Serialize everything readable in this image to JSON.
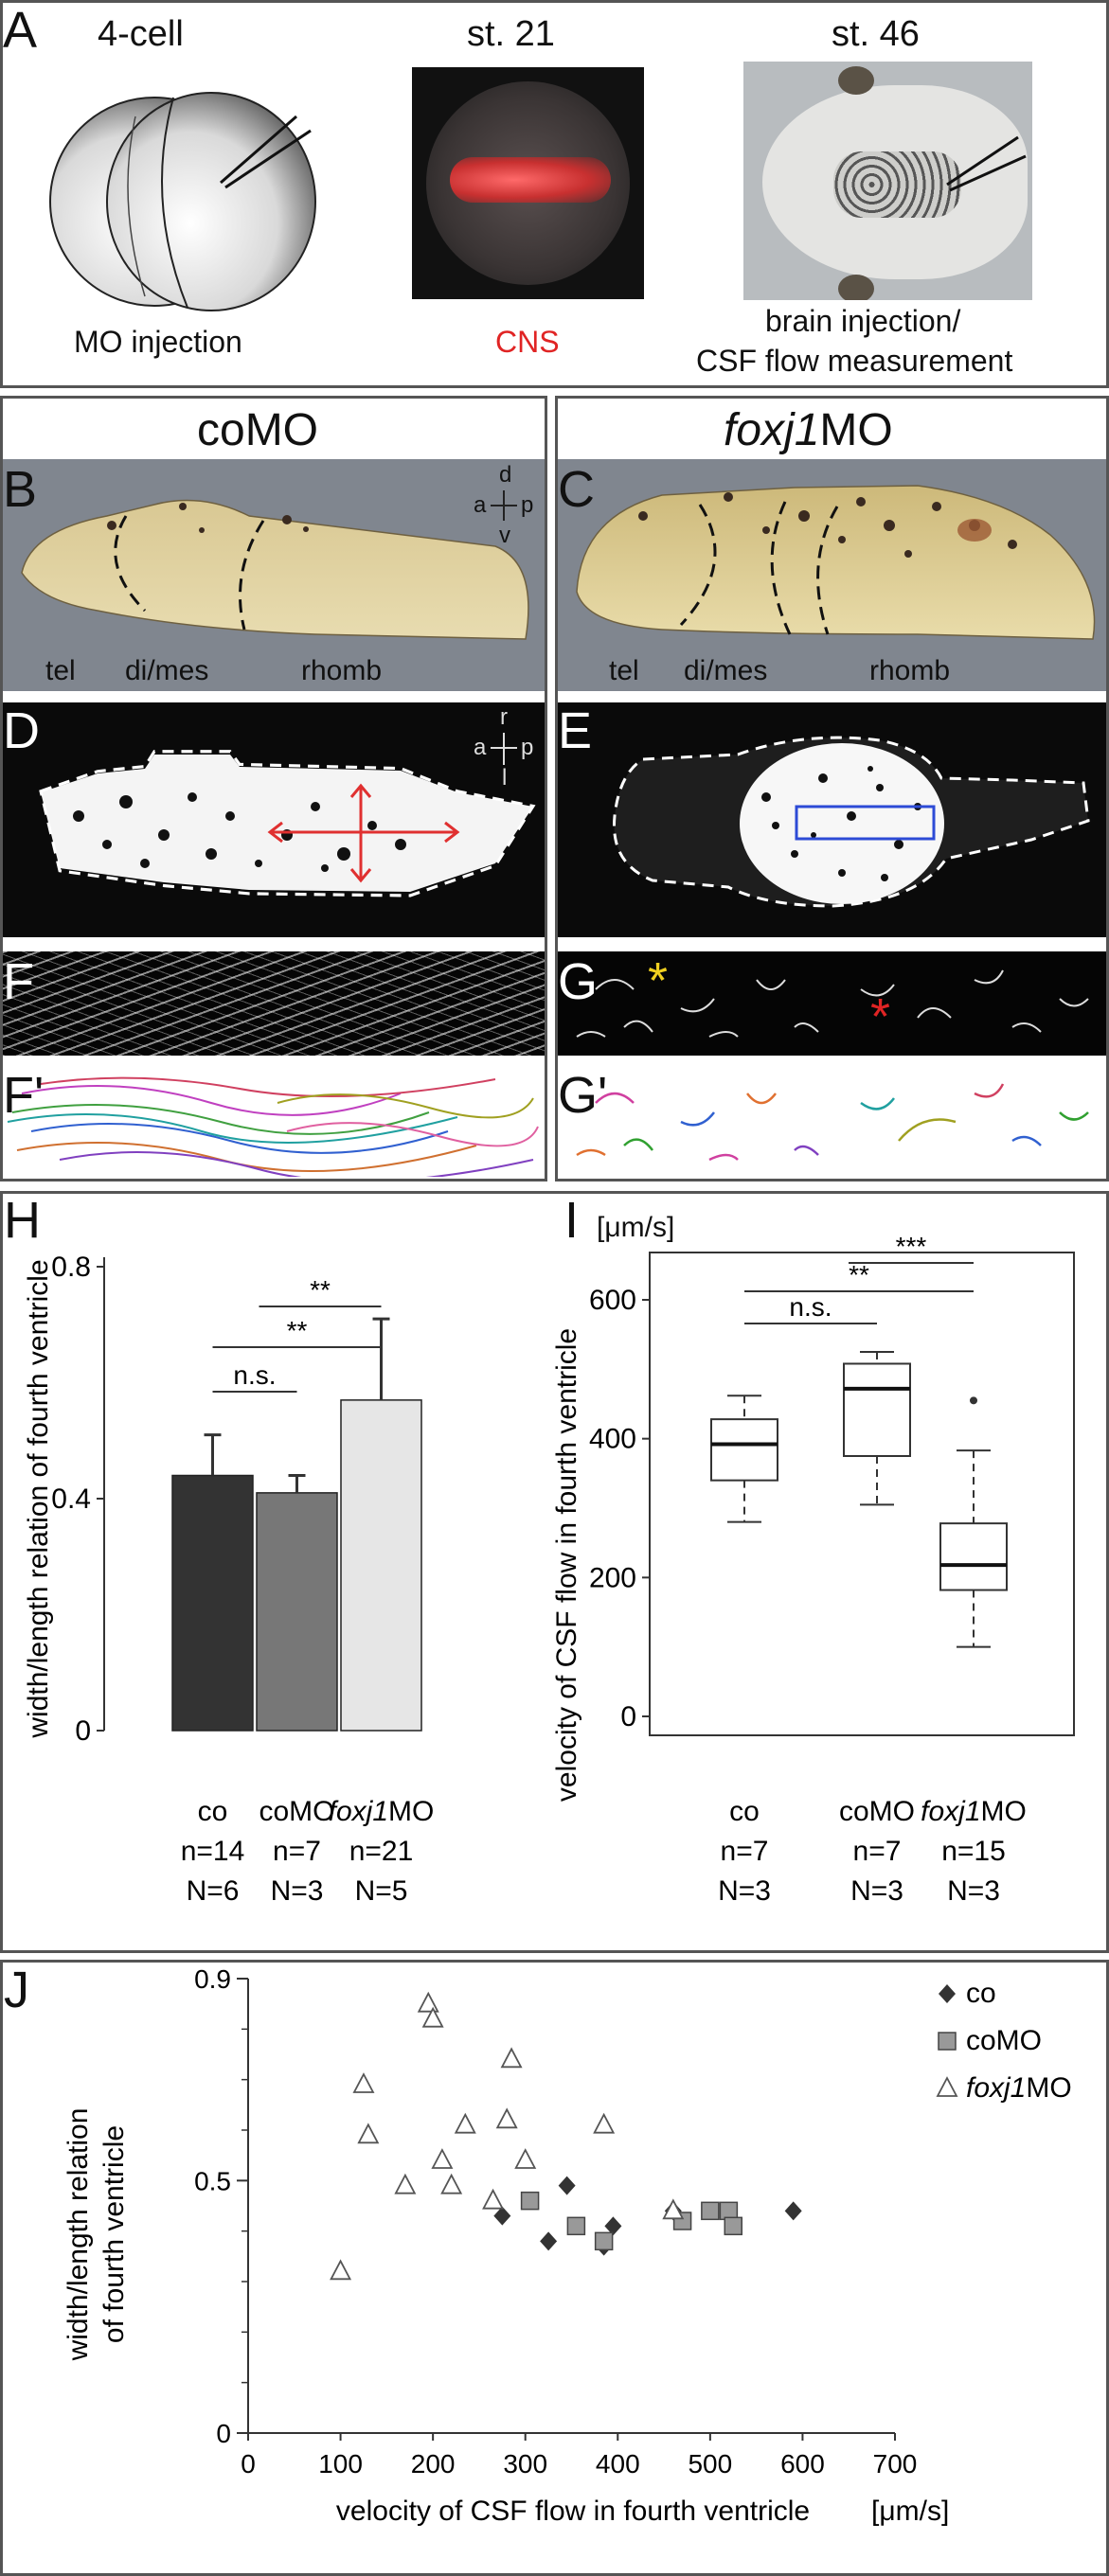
{
  "panelA": {
    "letter": "A",
    "stage1": "4-cell",
    "stage2": "st. 21",
    "stage3": "st. 46",
    "caption1": "MO injection",
    "caption2": "CNS",
    "caption3_line1": "brain injection/",
    "caption3_line2": "CSF flow measurement",
    "colors": {
      "cns": "#e02424"
    }
  },
  "left_header": "coMO",
  "right_header_italic": "foxj1",
  "right_header_rest": "MO",
  "panelB": {
    "letter": "B",
    "tel": "tel",
    "dimes": "di/mes",
    "rhomb": "rhomb",
    "axis_d": "d",
    "axis_a": "a",
    "axis_p": "p",
    "axis_v": "v"
  },
  "panelC": {
    "letter": "C",
    "tel": "tel",
    "dimes": "di/mes",
    "rhomb": "rhomb"
  },
  "panelD": {
    "letter": "D",
    "axis_r": "r",
    "axis_a": "a",
    "axis_p": "p",
    "axis_l": "l"
  },
  "panelE": {
    "letter": "E"
  },
  "panelF": {
    "letter": "F",
    "letter2": "F'"
  },
  "panelG": {
    "letter": "G",
    "letter2": "G'"
  },
  "panelH": {
    "letter": "H",
    "sig1": "n.s.",
    "sig2": "**",
    "sig3": "**",
    "n": [
      "n=14",
      "n=7",
      "n=21"
    ],
    "N": [
      "N=6",
      "N=3",
      "N=5"
    ]
  },
  "panelI": {
    "letter": "I",
    "unit": "[μm/s]",
    "sig1": "n.s.",
    "sig2": "**",
    "sig3": "***",
    "n": [
      "n=7",
      "n=7",
      "n=15"
    ],
    "N": [
      "N=3",
      "N=3",
      "N=3"
    ]
  },
  "panelJ": {
    "letter": "J"
  },
  "chart_data": [
    {
      "type": "bar",
      "panel": "H",
      "ylabel": "width/length relation of fourth ventricle",
      "categories": [
        "co",
        "coMO",
        "foxj1MO"
      ],
      "values": [
        0.44,
        0.41,
        0.57
      ],
      "errors": [
        0.07,
        0.03,
        0.14
      ],
      "colors": [
        "#333333",
        "#777777",
        "#e6e6e6"
      ],
      "ylim": [
        0,
        0.8
      ],
      "yticks": [
        "0",
        "0.4",
        "0.8"
      ]
    },
    {
      "type": "box",
      "panel": "I",
      "ylabel": "velocity of CSF flow in fourth ventricle",
      "categories": [
        "co",
        "coMO",
        "foxj1MO"
      ],
      "boxes": [
        {
          "min": 280,
          "q1": 340,
          "median": 392,
          "q3": 428,
          "max": 462,
          "outliers": []
        },
        {
          "min": 305,
          "q1": 375,
          "median": 472,
          "q3": 508,
          "max": 525,
          "outliers": []
        },
        {
          "min": 100,
          "q1": 182,
          "median": 218,
          "q3": 278,
          "max": 383,
          "outliers": [
            455
          ]
        }
      ],
      "ylim": [
        0,
        660
      ],
      "yticks": [
        "0",
        "200",
        "400",
        "600"
      ]
    },
    {
      "type": "scatter",
      "panel": "J",
      "xlabel": "velocity of CSF flow in fourth ventricle",
      "xunit": "[μm/s]",
      "ylabel_line1": "width/length relation",
      "ylabel_line2": "of fourth ventricle",
      "xlim": [
        0,
        700
      ],
      "ylim": [
        0,
        0.9
      ],
      "xticks": [
        "0",
        "100",
        "200",
        "300",
        "400",
        "500",
        "600",
        "700"
      ],
      "yticks": [
        "0",
        "0.5",
        "0.9"
      ],
      "series": [
        {
          "name": "co",
          "marker": "diamond",
          "color": "#333333",
          "points": [
            [
              275,
              0.43
            ],
            [
              325,
              0.38
            ],
            [
              345,
              0.49
            ],
            [
              385,
              0.37
            ],
            [
              395,
              0.41
            ],
            [
              460,
              0.44
            ],
            [
              590,
              0.44
            ]
          ]
        },
        {
          "name": "coMO",
          "marker": "square",
          "color": "#999999",
          "points": [
            [
              305,
              0.46
            ],
            [
              355,
              0.41
            ],
            [
              385,
              0.38
            ],
            [
              470,
              0.42
            ],
            [
              500,
              0.44
            ],
            [
              520,
              0.44
            ],
            [
              525,
              0.41
            ]
          ]
        },
        {
          "name": "foxj1MO",
          "marker": "triangle",
          "color": "#ffffff",
          "points": [
            [
              100,
              0.32
            ],
            [
              125,
              0.69
            ],
            [
              130,
              0.59
            ],
            [
              170,
              0.49
            ],
            [
              195,
              0.85
            ],
            [
              200,
              0.82
            ],
            [
              210,
              0.54
            ],
            [
              220,
              0.49
            ],
            [
              235,
              0.61
            ],
            [
              265,
              0.46
            ],
            [
              280,
              0.62
            ],
            [
              285,
              0.74
            ],
            [
              300,
              0.54
            ],
            [
              385,
              0.61
            ],
            [
              460,
              0.44
            ]
          ]
        }
      ],
      "legend": [
        "co",
        "coMO",
        "foxj1MO"
      ]
    }
  ]
}
